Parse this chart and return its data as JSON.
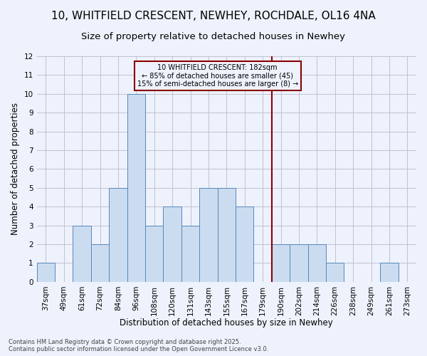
{
  "title": "10, WHITFIELD CRESCENT, NEWHEY, ROCHDALE, OL16 4NA",
  "subtitle": "Size of property relative to detached houses in Newhey",
  "xlabel": "Distribution of detached houses by size in Newhey",
  "ylabel": "Number of detached properties",
  "categories": [
    "37sqm",
    "49sqm",
    "61sqm",
    "72sqm",
    "84sqm",
    "96sqm",
    "108sqm",
    "120sqm",
    "131sqm",
    "143sqm",
    "155sqm",
    "167sqm",
    "179sqm",
    "190sqm",
    "202sqm",
    "214sqm",
    "226sqm",
    "238sqm",
    "249sqm",
    "261sqm",
    "273sqm"
  ],
  "values": [
    1,
    0,
    3,
    2,
    5,
    10,
    3,
    4,
    3,
    5,
    5,
    4,
    0,
    2,
    2,
    2,
    1,
    0,
    0,
    1,
    0
  ],
  "bar_color": "#ccdcf0",
  "bar_edge_color": "#5588bb",
  "property_line_x": 12.5,
  "property_line_color": "#8b0000",
  "annotation_text": "10 WHITFIELD CRESCENT: 182sqm\n← 85% of detached houses are smaller (45)\n15% of semi-detached houses are larger (8) →",
  "ylim": [
    0,
    12
  ],
  "yticks": [
    0,
    1,
    2,
    3,
    4,
    5,
    6,
    7,
    8,
    9,
    10,
    11,
    12
  ],
  "footer": "Contains HM Land Registry data © Crown copyright and database right 2025.\nContains public sector information licensed under the Open Government Licence v3.0.",
  "bg_color": "#eef2fc",
  "grid_color": "#bbbbcc",
  "title_fontsize": 11,
  "subtitle_fontsize": 9.5,
  "axis_label_fontsize": 8.5,
  "tick_fontsize": 7.5,
  "footer_fontsize": 6
}
